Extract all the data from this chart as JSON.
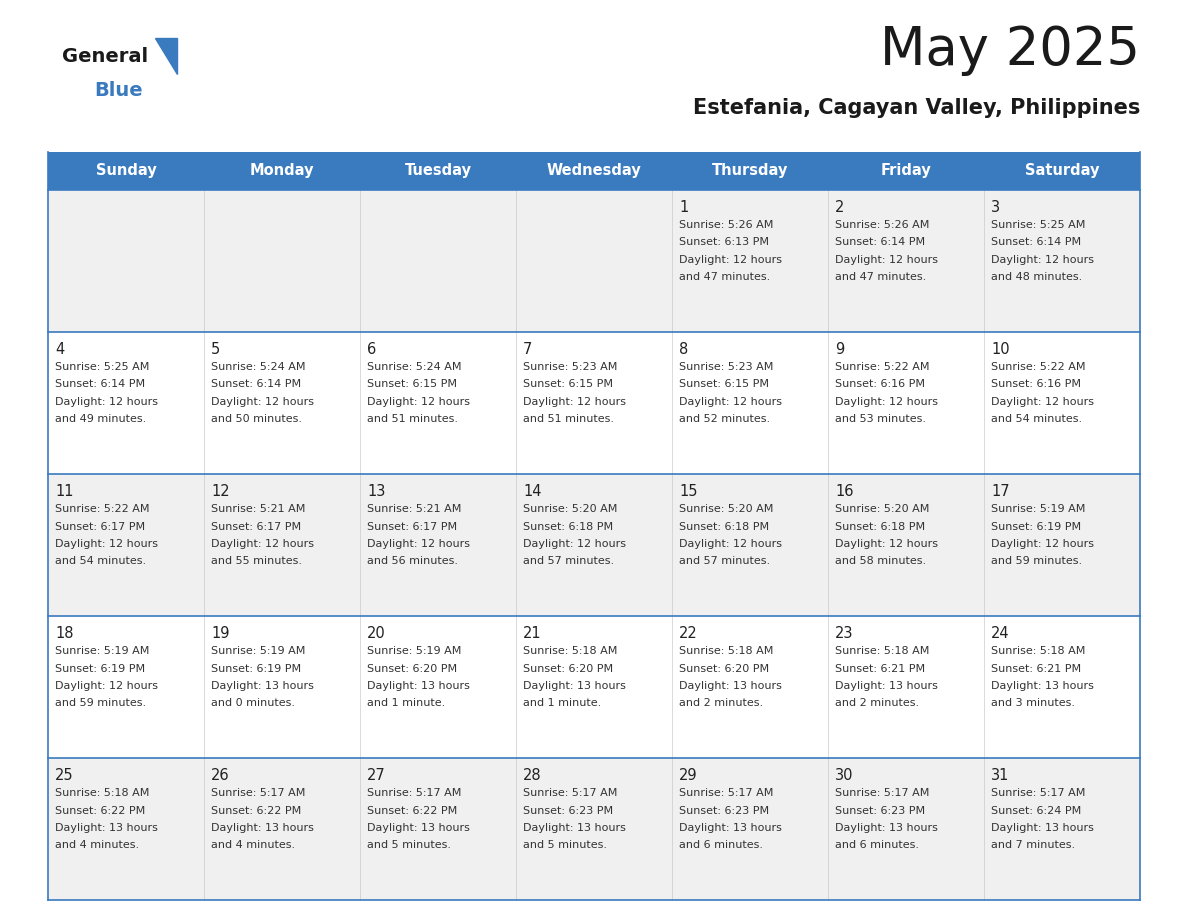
{
  "title": "May 2025",
  "subtitle": "Estefania, Cagayan Valley, Philippines",
  "header_color": "#3a7abf",
  "header_text_color": "#ffffff",
  "day_names": [
    "Sunday",
    "Monday",
    "Tuesday",
    "Wednesday",
    "Thursday",
    "Friday",
    "Saturday"
  ],
  "bg_color": "#ffffff",
  "cell_bg_even": "#f0f0f0",
  "cell_bg_odd": "#ffffff",
  "row_line_color": "#3a7abf",
  "text_color": "#333333",
  "calendar_data": [
    [
      {
        "day": "",
        "sunrise": "",
        "sunset": "",
        "daylight": ""
      },
      {
        "day": "",
        "sunrise": "",
        "sunset": "",
        "daylight": ""
      },
      {
        "day": "",
        "sunrise": "",
        "sunset": "",
        "daylight": ""
      },
      {
        "day": "",
        "sunrise": "",
        "sunset": "",
        "daylight": ""
      },
      {
        "day": "1",
        "sunrise": "5:26 AM",
        "sunset": "6:13 PM",
        "daylight": "12 hours and 47 minutes"
      },
      {
        "day": "2",
        "sunrise": "5:26 AM",
        "sunset": "6:14 PM",
        "daylight": "12 hours and 47 minutes"
      },
      {
        "day": "3",
        "sunrise": "5:25 AM",
        "sunset": "6:14 PM",
        "daylight": "12 hours and 48 minutes"
      }
    ],
    [
      {
        "day": "4",
        "sunrise": "5:25 AM",
        "sunset": "6:14 PM",
        "daylight": "12 hours and 49 minutes"
      },
      {
        "day": "5",
        "sunrise": "5:24 AM",
        "sunset": "6:14 PM",
        "daylight": "12 hours and 50 minutes"
      },
      {
        "day": "6",
        "sunrise": "5:24 AM",
        "sunset": "6:15 PM",
        "daylight": "12 hours and 51 minutes"
      },
      {
        "day": "7",
        "sunrise": "5:23 AM",
        "sunset": "6:15 PM",
        "daylight": "12 hours and 51 minutes"
      },
      {
        "day": "8",
        "sunrise": "5:23 AM",
        "sunset": "6:15 PM",
        "daylight": "12 hours and 52 minutes"
      },
      {
        "day": "9",
        "sunrise": "5:22 AM",
        "sunset": "6:16 PM",
        "daylight": "12 hours and 53 minutes"
      },
      {
        "day": "10",
        "sunrise": "5:22 AM",
        "sunset": "6:16 PM",
        "daylight": "12 hours and 54 minutes"
      }
    ],
    [
      {
        "day": "11",
        "sunrise": "5:22 AM",
        "sunset": "6:17 PM",
        "daylight": "12 hours and 54 minutes"
      },
      {
        "day": "12",
        "sunrise": "5:21 AM",
        "sunset": "6:17 PM",
        "daylight": "12 hours and 55 minutes"
      },
      {
        "day": "13",
        "sunrise": "5:21 AM",
        "sunset": "6:17 PM",
        "daylight": "12 hours and 56 minutes"
      },
      {
        "day": "14",
        "sunrise": "5:20 AM",
        "sunset": "6:18 PM",
        "daylight": "12 hours and 57 minutes"
      },
      {
        "day": "15",
        "sunrise": "5:20 AM",
        "sunset": "6:18 PM",
        "daylight": "12 hours and 57 minutes"
      },
      {
        "day": "16",
        "sunrise": "5:20 AM",
        "sunset": "6:18 PM",
        "daylight": "12 hours and 58 minutes"
      },
      {
        "day": "17",
        "sunrise": "5:19 AM",
        "sunset": "6:19 PM",
        "daylight": "12 hours and 59 minutes"
      }
    ],
    [
      {
        "day": "18",
        "sunrise": "5:19 AM",
        "sunset": "6:19 PM",
        "daylight": "12 hours and 59 minutes"
      },
      {
        "day": "19",
        "sunrise": "5:19 AM",
        "sunset": "6:19 PM",
        "daylight": "13 hours and 0 minutes"
      },
      {
        "day": "20",
        "sunrise": "5:19 AM",
        "sunset": "6:20 PM",
        "daylight": "13 hours and 1 minute"
      },
      {
        "day": "21",
        "sunrise": "5:18 AM",
        "sunset": "6:20 PM",
        "daylight": "13 hours and 1 minute"
      },
      {
        "day": "22",
        "sunrise": "5:18 AM",
        "sunset": "6:20 PM",
        "daylight": "13 hours and 2 minutes"
      },
      {
        "day": "23",
        "sunrise": "5:18 AM",
        "sunset": "6:21 PM",
        "daylight": "13 hours and 2 minutes"
      },
      {
        "day": "24",
        "sunrise": "5:18 AM",
        "sunset": "6:21 PM",
        "daylight": "13 hours and 3 minutes"
      }
    ],
    [
      {
        "day": "25",
        "sunrise": "5:18 AM",
        "sunset": "6:22 PM",
        "daylight": "13 hours and 4 minutes"
      },
      {
        "day": "26",
        "sunrise": "5:17 AM",
        "sunset": "6:22 PM",
        "daylight": "13 hours and 4 minutes"
      },
      {
        "day": "27",
        "sunrise": "5:17 AM",
        "sunset": "6:22 PM",
        "daylight": "13 hours and 5 minutes"
      },
      {
        "day": "28",
        "sunrise": "5:17 AM",
        "sunset": "6:23 PM",
        "daylight": "13 hours and 5 minutes"
      },
      {
        "day": "29",
        "sunrise": "5:17 AM",
        "sunset": "6:23 PM",
        "daylight": "13 hours and 6 minutes"
      },
      {
        "day": "30",
        "sunrise": "5:17 AM",
        "sunset": "6:23 PM",
        "daylight": "13 hours and 6 minutes"
      },
      {
        "day": "31",
        "sunrise": "5:17 AM",
        "sunset": "6:24 PM",
        "daylight": "13 hours and 7 minutes"
      }
    ]
  ]
}
